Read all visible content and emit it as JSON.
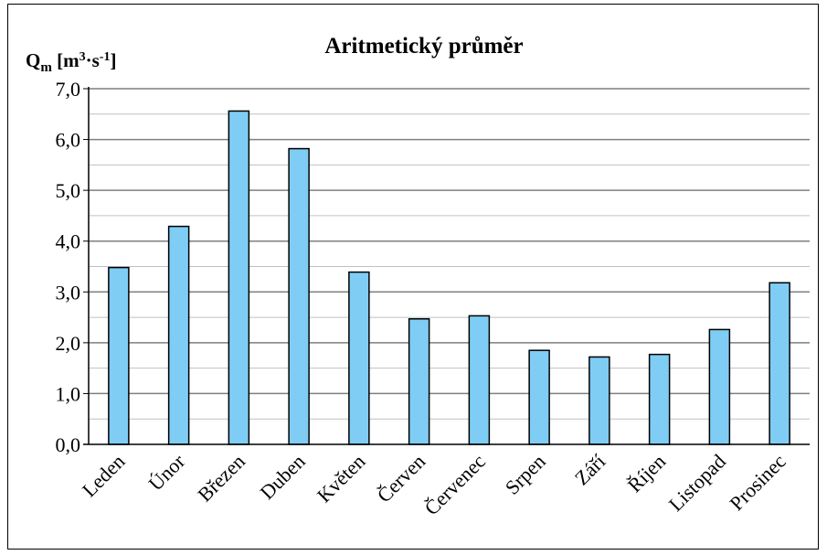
{
  "chart_data": {
    "type": "bar",
    "title": "Aritmetický průměr",
    "ylabel": {
      "main": "Q",
      "sub": "m",
      "unit_open": " [m",
      "sup1": "3",
      "mid": "·s",
      "sup2": "-1",
      "unit_close": "]"
    },
    "xlabel": "",
    "categories": [
      "Leden",
      "Únor",
      "Březen",
      "Duben",
      "Květen",
      "Červen",
      "Červenec",
      "Srpen",
      "Září",
      "Říjen",
      "Listopad",
      "Prosinec"
    ],
    "values": [
      3.48,
      4.29,
      6.56,
      5.82,
      3.39,
      2.47,
      2.53,
      1.85,
      1.72,
      1.77,
      2.26,
      3.18
    ],
    "ylim": [
      0,
      7
    ],
    "yticks": [
      "0,0",
      "1,0",
      "2,0",
      "3,0",
      "4,0",
      "5,0",
      "6,0",
      "7,0"
    ],
    "grid": true,
    "minor_grid": true,
    "legend": "none",
    "colors": {
      "bar_fill": "#7fcdf4",
      "bar_stroke": "#000000",
      "major_grid": "#7f7f7f",
      "minor_grid": "#c0c0c0",
      "axis": "#000000"
    }
  }
}
